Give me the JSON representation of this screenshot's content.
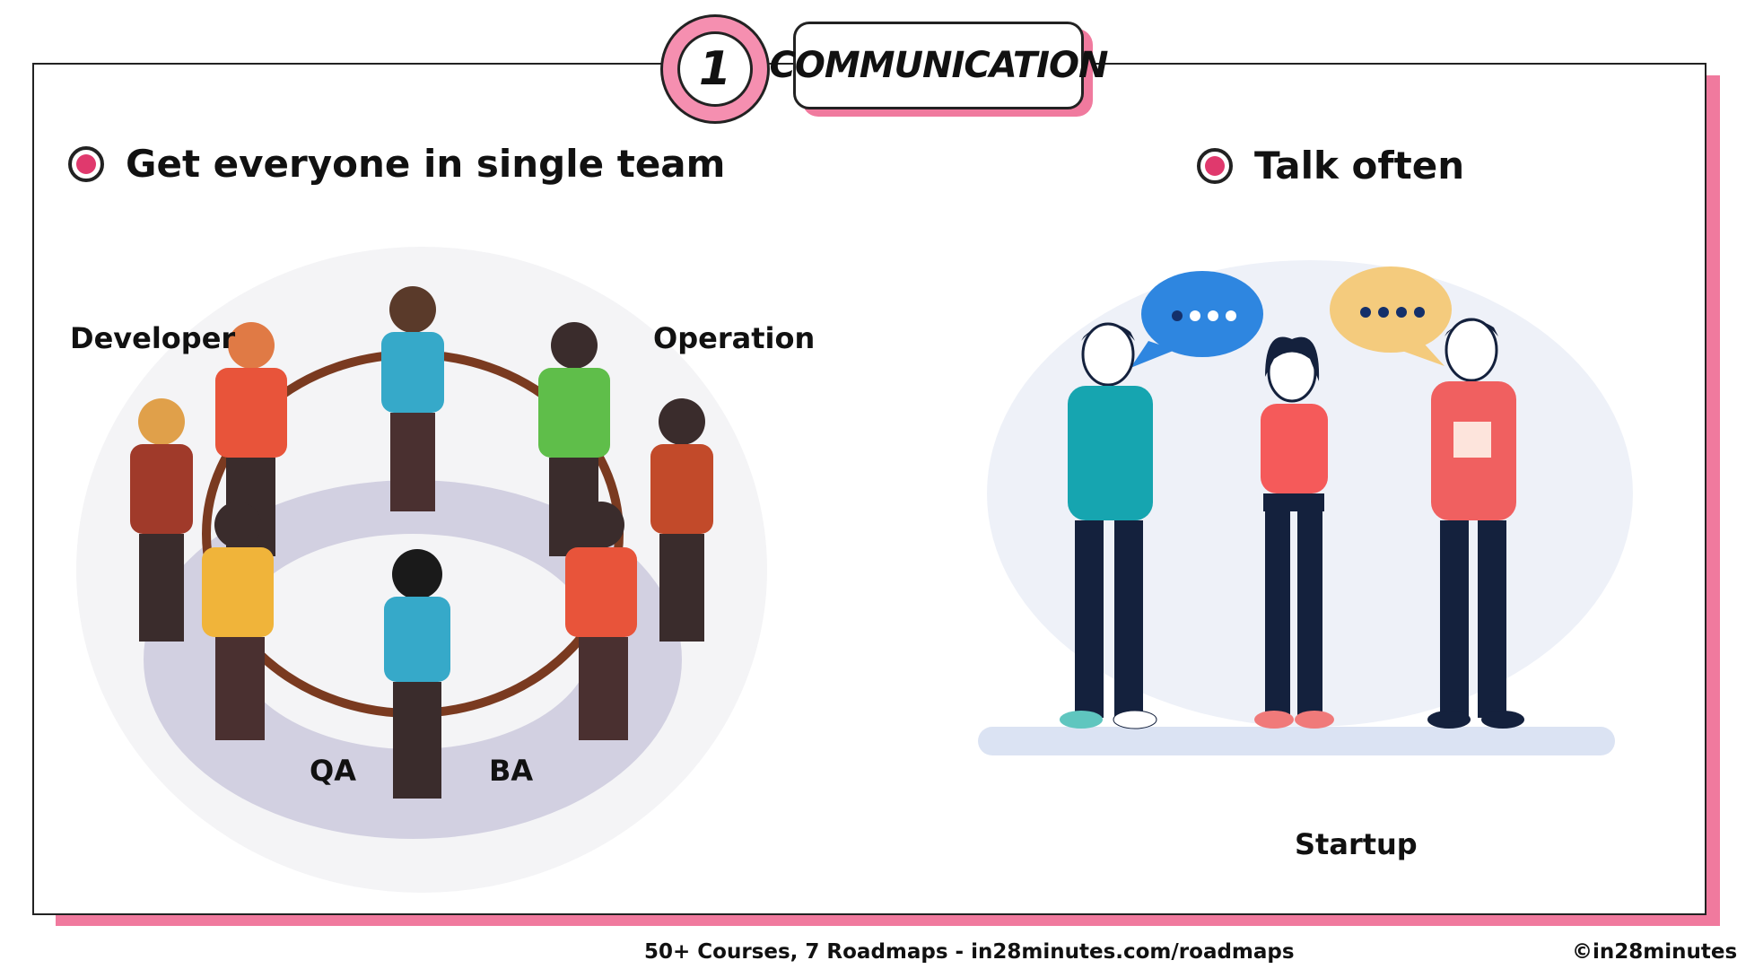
{
  "header": {
    "number": "1",
    "title": "COMMUNICATION"
  },
  "left": {
    "heading": "Get everyone in single team",
    "labels": {
      "developer": "Developer",
      "operation": "Operation",
      "qa": "QA",
      "ba": "BA"
    }
  },
  "right": {
    "heading": "Talk often",
    "caption": "Startup"
  },
  "footer": {
    "center": "50+ Courses, 7 Roadmaps  -  in28minutes.com/roadmaps",
    "right": "©in28minutes"
  },
  "colors": {
    "accent_pink": "#f07a9e",
    "bullet": "#e0396d"
  }
}
